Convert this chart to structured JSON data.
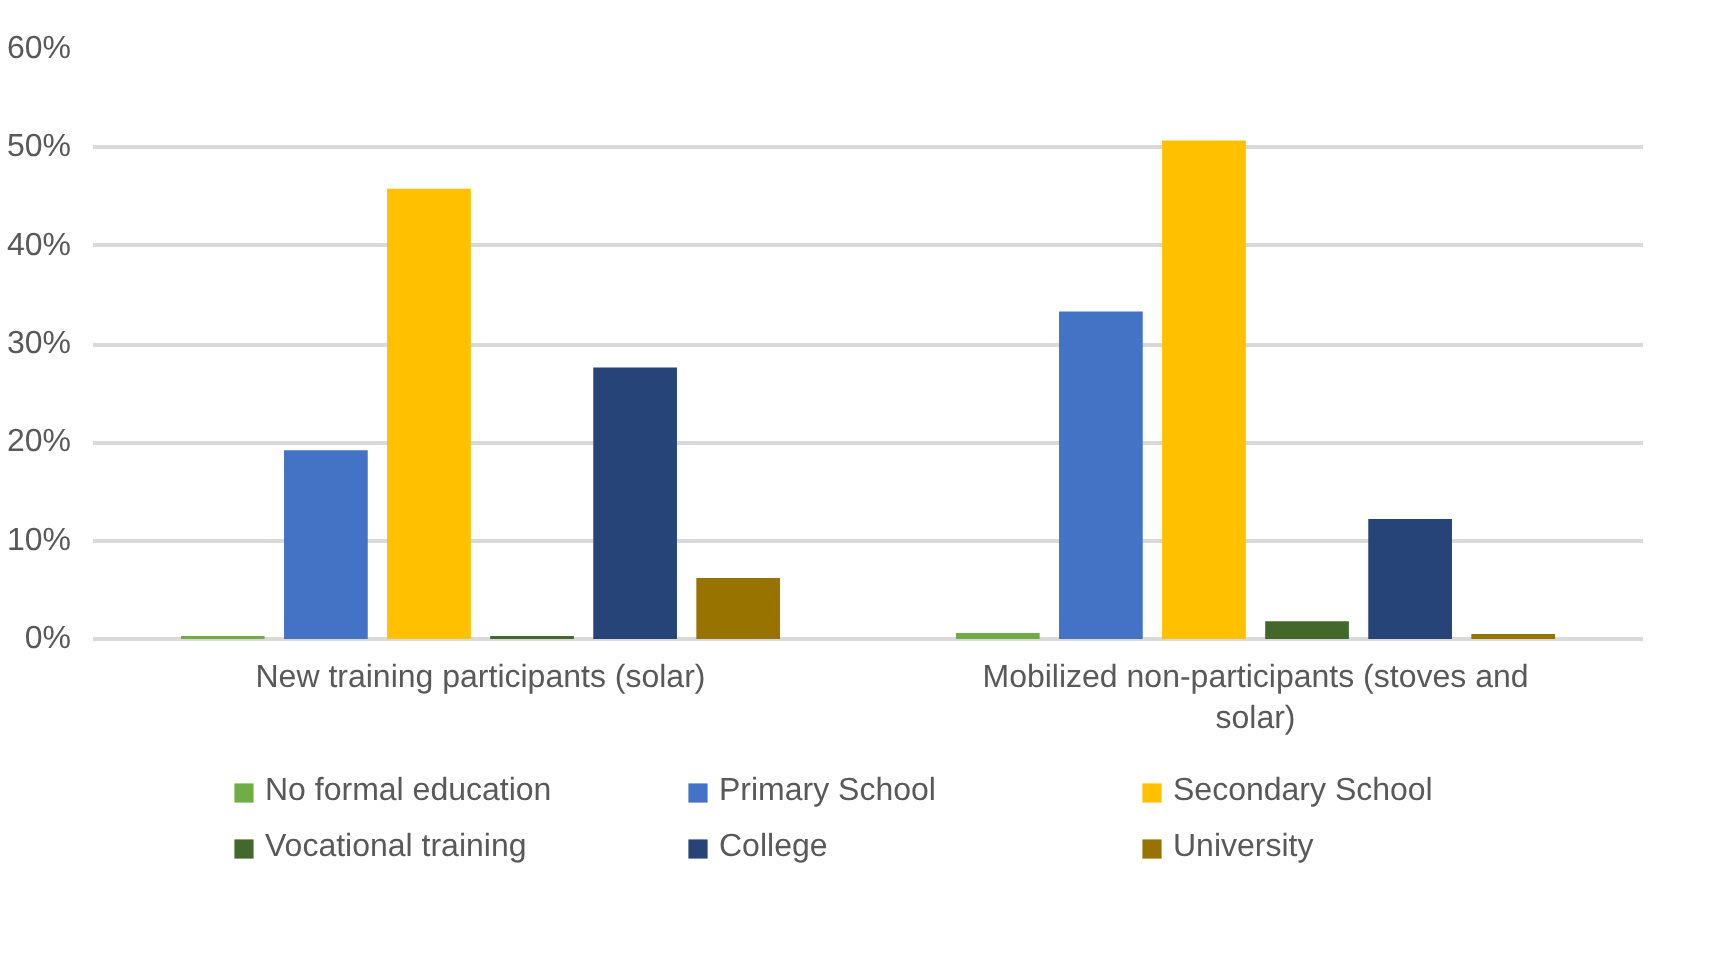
{
  "chart_data": {
    "type": "bar",
    "categories": [
      "New training participants (solar)",
      "Mobilized non-participants (stoves and solar)"
    ],
    "series": [
      {
        "name": "No formal education",
        "color": "#70ad47",
        "values": [
          0.3,
          0.6
        ]
      },
      {
        "name": "Primary School",
        "color": "#4472c4",
        "values": [
          19.2,
          33.3
        ]
      },
      {
        "name": "Secondary School",
        "color": "#ffc000",
        "values": [
          45.8,
          50.7
        ]
      },
      {
        "name": "Vocational training",
        "color": "#43682b",
        "values": [
          0.3,
          1.8
        ]
      },
      {
        "name": "College",
        "color": "#264478",
        "values": [
          27.6,
          12.2
        ]
      },
      {
        "name": "University",
        "color": "#997300",
        "values": [
          6.2,
          0.5
        ]
      }
    ],
    "ylim": [
      0,
      60
    ],
    "yticks": [
      {
        "value": 0,
        "label": "0%"
      },
      {
        "value": 10,
        "label": "10%"
      },
      {
        "value": 20,
        "label": "20%"
      },
      {
        "value": 30,
        "label": "30%"
      },
      {
        "value": 40,
        "label": "40%"
      },
      {
        "value": 50,
        "label": "50%"
      },
      {
        "value": 60,
        "label": "60%"
      }
    ],
    "grid": "y",
    "legend": "bottom"
  }
}
